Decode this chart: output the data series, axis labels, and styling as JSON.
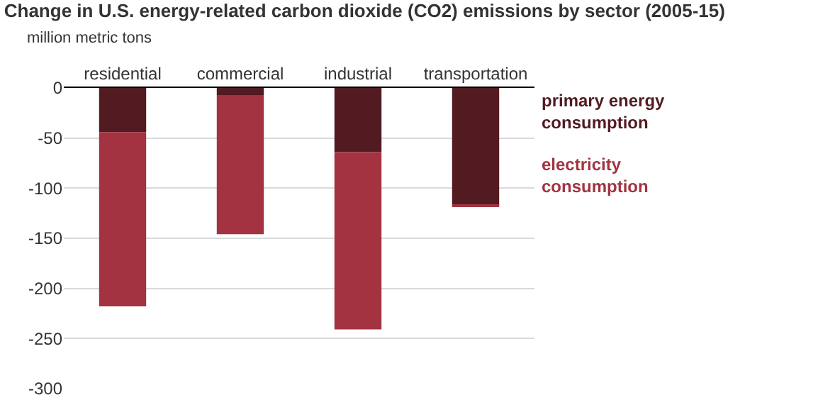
{
  "chart_data": {
    "type": "bar",
    "title": "Change in U.S. energy-related carbon dioxide (CO2) emissions by sector (2005-15)",
    "subtitle": "million metric tons",
    "categories": [
      "residential",
      "commercial",
      "industrial",
      "transportation"
    ],
    "series": [
      {
        "name": "primary energy consumption",
        "color": "#521a21",
        "values": [
          -44,
          -7,
          -64,
          -117
        ]
      },
      {
        "name": "electricity consumption",
        "color": "#a33340",
        "values": [
          -174,
          -139,
          -177,
          -1
        ]
      }
    ],
    "stacked": true,
    "ylim": [
      -300,
      0
    ],
    "yticks": [
      -300,
      -250,
      -200,
      -150,
      -100,
      -50,
      0
    ],
    "grid": "y",
    "legend": false
  }
}
